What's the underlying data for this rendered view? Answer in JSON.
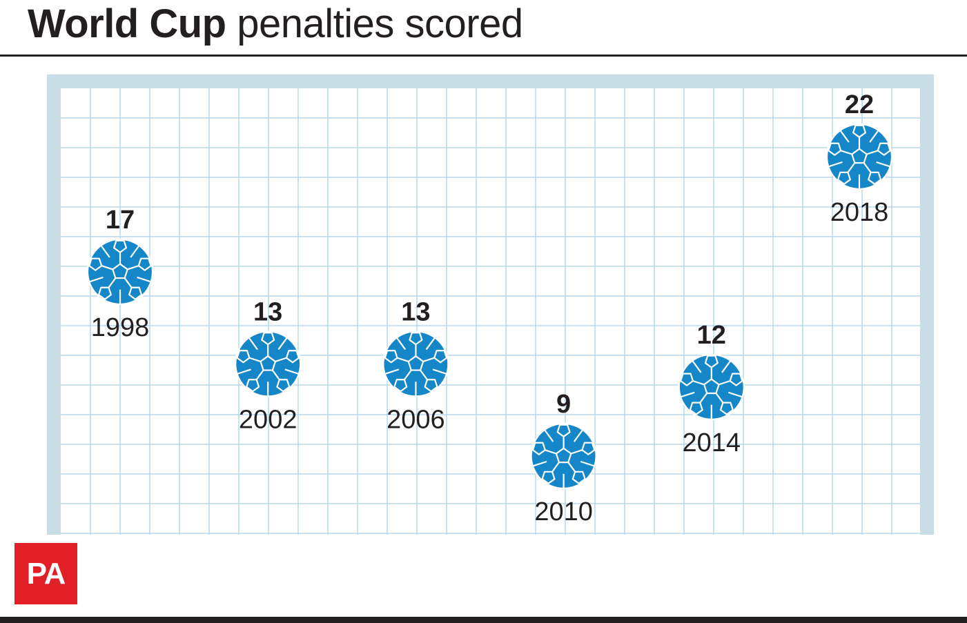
{
  "title": {
    "bold": "World Cup",
    "rest": "penalties scored"
  },
  "logo": "PA",
  "colors": {
    "ball": "#1586c7",
    "goal_frame": "#c8dde6",
    "net": "#a9d4e8",
    "text": "#231f20",
    "logo_bg": "#e21e26"
  },
  "chart_data": {
    "type": "scatter",
    "title": "World Cup penalties scored",
    "x": [
      "1998",
      "2002",
      "2006",
      "2010",
      "2014",
      "2018"
    ],
    "values": [
      17,
      13,
      13,
      9,
      12,
      22
    ],
    "marker": "football-icon",
    "ylim": [
      0,
      24
    ],
    "grid": true
  }
}
